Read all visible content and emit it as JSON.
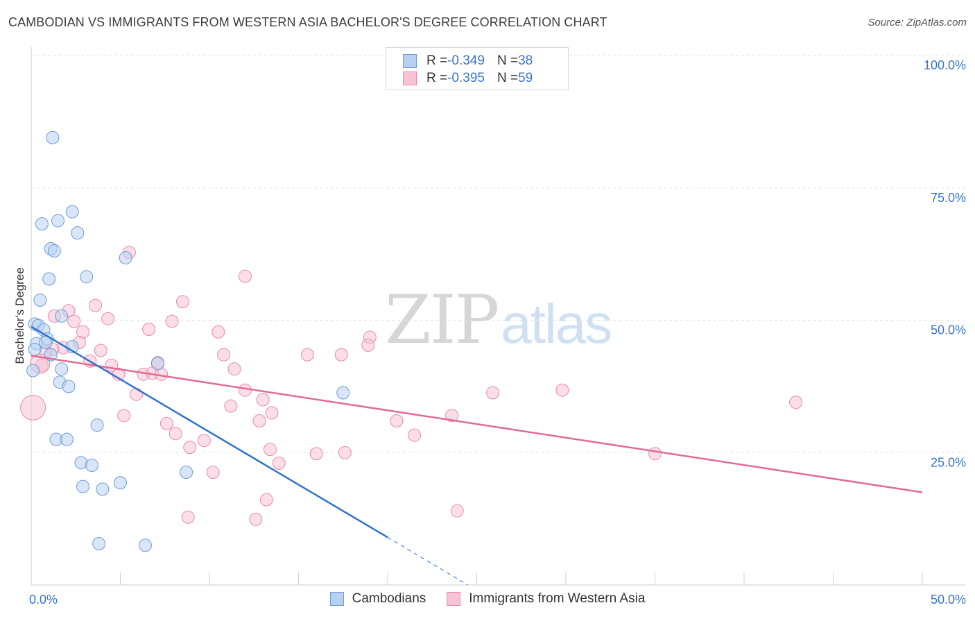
{
  "title": "CAMBODIAN VS IMMIGRANTS FROM WESTERN ASIA BACHELOR'S DEGREE CORRELATION CHART",
  "source": "Source: ZipAtlas.com",
  "watermark": {
    "part1": "ZIP",
    "part2": "atlas"
  },
  "legend_top": [
    {
      "r_label": "R = ",
      "r_value": "-0.349",
      "n_label": "N = ",
      "n_value": "38"
    },
    {
      "r_label": "R = ",
      "r_value": "-0.395",
      "n_label": "N = ",
      "n_value": "59"
    }
  ],
  "colors": {
    "blue_fill": "#b8d1f3",
    "blue_stroke": "#6c9bd8",
    "blue_line": "#2f72d0",
    "pink_fill": "#f8c3d3",
    "pink_stroke": "#e88aa8",
    "pink_line": "#e26b93",
    "axis_text": "#3a74c9",
    "grid": "#e3e3e3"
  },
  "chart_data": {
    "type": "scatter",
    "title": "CAMBODIAN VS IMMIGRANTS FROM WESTERN ASIA BACHELOR'S DEGREE CORRELATION CHART",
    "xlabel": "",
    "ylabel": "Bachelor's Degree",
    "xlim": [
      0,
      50
    ],
    "ylim": [
      0,
      100
    ],
    "x_tick_labels": [
      "0.0%",
      "50.0%"
    ],
    "y_tick_labels": [
      "100.0%",
      "75.0%",
      "50.0%",
      "25.0%"
    ],
    "y_tick_values": [
      100,
      75,
      50,
      25
    ],
    "legend": [
      "Cambodians",
      "Immigrants from Western Asia"
    ],
    "series": [
      {
        "name": "Cambodians",
        "r": -0.349,
        "n": 38,
        "trend": {
          "x0": 0,
          "y0": 48.8,
          "x1": 20,
          "y1": 9.0,
          "dashed_to_x": 24.5,
          "dashed_to_y": 0
        },
        "points": [
          {
            "x": 1.2,
            "y": 84.5
          },
          {
            "x": 2.3,
            "y": 70.5
          },
          {
            "x": 1.5,
            "y": 68.8
          },
          {
            "x": 0.6,
            "y": 68.2
          },
          {
            "x": 2.6,
            "y": 66.5
          },
          {
            "x": 1.1,
            "y": 63.5
          },
          {
            "x": 1.3,
            "y": 63.1
          },
          {
            "x": 5.3,
            "y": 61.8
          },
          {
            "x": 1.0,
            "y": 57.8
          },
          {
            "x": 3.1,
            "y": 58.2
          },
          {
            "x": 0.5,
            "y": 53.8
          },
          {
            "x": 1.7,
            "y": 50.8
          },
          {
            "x": 0.2,
            "y": 49.3
          },
          {
            "x": 0.4,
            "y": 49.0
          },
          {
            "x": 0.7,
            "y": 48.2
          },
          {
            "x": 0.9,
            "y": 46.5
          },
          {
            "x": 0.3,
            "y": 45.6
          },
          {
            "x": 0.8,
            "y": 45.8
          },
          {
            "x": 2.3,
            "y": 45.0
          },
          {
            "x": 0.2,
            "y": 44.5
          },
          {
            "x": 1.1,
            "y": 43.5
          },
          {
            "x": 7.1,
            "y": 41.8
          },
          {
            "x": 1.7,
            "y": 40.8
          },
          {
            "x": 0.1,
            "y": 40.5
          },
          {
            "x": 1.6,
            "y": 38.3
          },
          {
            "x": 2.1,
            "y": 37.5
          },
          {
            "x": 17.5,
            "y": 36.3
          },
          {
            "x": 3.7,
            "y": 30.2
          },
          {
            "x": 1.4,
            "y": 27.5
          },
          {
            "x": 2.0,
            "y": 27.5
          },
          {
            "x": 2.8,
            "y": 23.1
          },
          {
            "x": 3.4,
            "y": 22.6
          },
          {
            "x": 8.7,
            "y": 21.3
          },
          {
            "x": 5.0,
            "y": 19.3
          },
          {
            "x": 2.9,
            "y": 18.6
          },
          {
            "x": 4.0,
            "y": 18.1
          },
          {
            "x": 3.8,
            "y": 7.8
          },
          {
            "x": 6.4,
            "y": 7.5
          }
        ]
      },
      {
        "name": "Immigrants from Western Asia",
        "r": -0.395,
        "n": 59,
        "trend": {
          "x0": 0,
          "y0": 43.3,
          "x1": 50,
          "y1": 17.5
        },
        "points": [
          {
            "x": 5.5,
            "y": 62.8
          },
          {
            "x": 12.0,
            "y": 58.3
          },
          {
            "x": 8.5,
            "y": 53.5
          },
          {
            "x": 3.6,
            "y": 52.8
          },
          {
            "x": 2.1,
            "y": 51.8
          },
          {
            "x": 1.3,
            "y": 50.8
          },
          {
            "x": 4.3,
            "y": 50.3
          },
          {
            "x": 2.4,
            "y": 49.8
          },
          {
            "x": 7.9,
            "y": 49.8
          },
          {
            "x": 2.9,
            "y": 47.8
          },
          {
            "x": 6.6,
            "y": 48.3
          },
          {
            "x": 10.5,
            "y": 47.8
          },
          {
            "x": 19.0,
            "y": 46.8
          },
          {
            "x": 18.9,
            "y": 45.3
          },
          {
            "x": 2.7,
            "y": 45.8
          },
          {
            "x": 1.8,
            "y": 44.8
          },
          {
            "x": 1.2,
            "y": 44.5
          },
          {
            "x": 0.8,
            "y": 44.0
          },
          {
            "x": 3.9,
            "y": 44.3
          },
          {
            "x": 10.8,
            "y": 43.5
          },
          {
            "x": 15.5,
            "y": 43.5
          },
          {
            "x": 17.4,
            "y": 43.5
          },
          {
            "x": 3.3,
            "y": 42.3
          },
          {
            "x": 4.5,
            "y": 41.5
          },
          {
            "x": 7.1,
            "y": 42.0
          },
          {
            "x": 11.4,
            "y": 40.8
          },
          {
            "x": 0.6,
            "y": 41.5
          },
          {
            "x": 4.9,
            "y": 39.8
          },
          {
            "x": 6.3,
            "y": 39.8
          },
          {
            "x": 6.8,
            "y": 40.0
          },
          {
            "x": 7.3,
            "y": 39.8
          },
          {
            "x": 12.0,
            "y": 36.8
          },
          {
            "x": 5.9,
            "y": 36.0
          },
          {
            "x": 25.9,
            "y": 36.3
          },
          {
            "x": 29.8,
            "y": 36.8
          },
          {
            "x": 42.9,
            "y": 34.5
          },
          {
            "x": 13.0,
            "y": 35.0
          },
          {
            "x": 11.2,
            "y": 33.8
          },
          {
            "x": 13.5,
            "y": 32.5
          },
          {
            "x": 5.2,
            "y": 32.0
          },
          {
            "x": 23.6,
            "y": 32.0
          },
          {
            "x": 12.8,
            "y": 31.0
          },
          {
            "x": 20.5,
            "y": 31.0
          },
          {
            "x": 7.6,
            "y": 30.5
          },
          {
            "x": 8.1,
            "y": 28.6
          },
          {
            "x": 21.5,
            "y": 28.3
          },
          {
            "x": 9.7,
            "y": 27.3
          },
          {
            "x": 8.9,
            "y": 26.0
          },
          {
            "x": 13.4,
            "y": 25.6
          },
          {
            "x": 16.0,
            "y": 24.8
          },
          {
            "x": 17.6,
            "y": 25.0
          },
          {
            "x": 35.0,
            "y": 24.8
          },
          {
            "x": 13.9,
            "y": 23.0
          },
          {
            "x": 10.2,
            "y": 21.3
          },
          {
            "x": 13.2,
            "y": 16.1
          },
          {
            "x": 8.8,
            "y": 12.8
          },
          {
            "x": 12.6,
            "y": 12.4
          },
          {
            "x": 23.9,
            "y": 14.0
          },
          {
            "x": 0.1,
            "y": 33.5
          }
        ]
      }
    ]
  }
}
